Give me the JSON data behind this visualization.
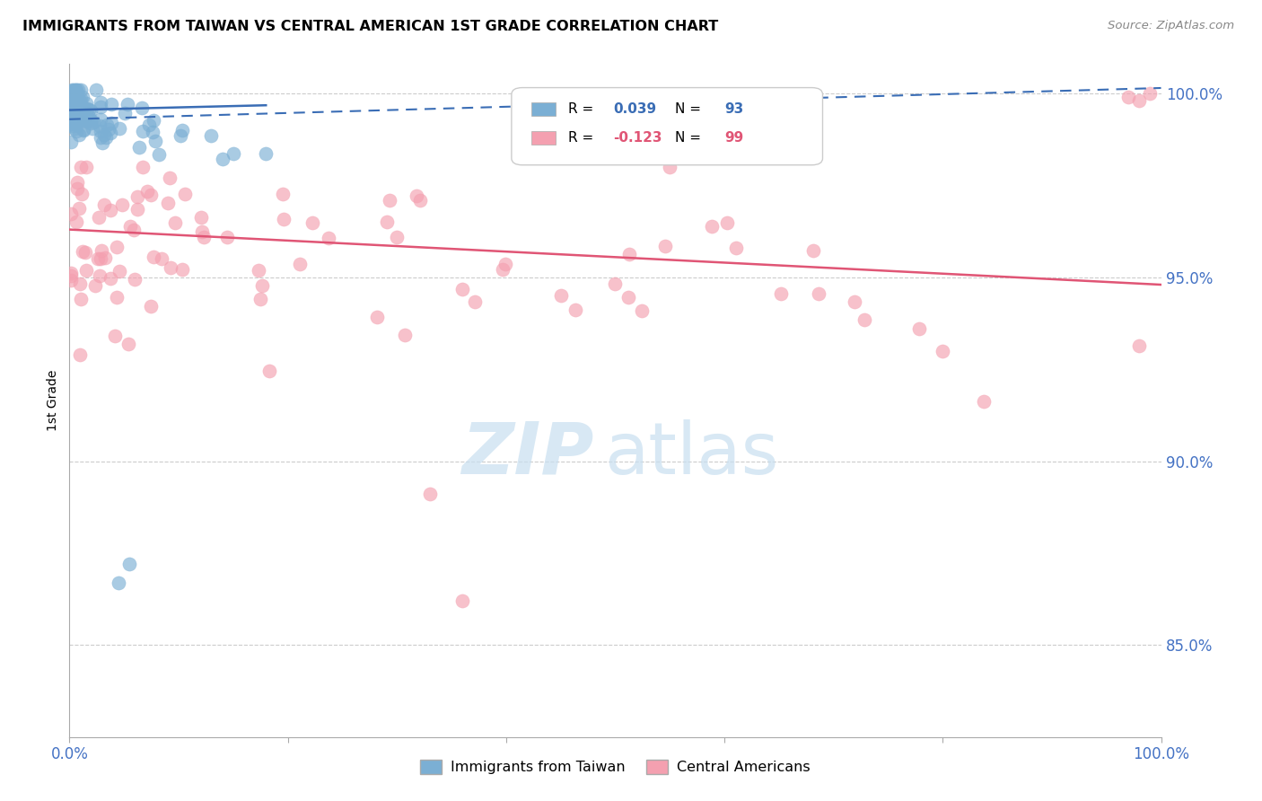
{
  "title": "IMMIGRANTS FROM TAIWAN VS CENTRAL AMERICAN 1ST GRADE CORRELATION CHART",
  "source": "Source: ZipAtlas.com",
  "ylabel": "1st Grade",
  "xlim": [
    0.0,
    1.0
  ],
  "ylim": [
    0.825,
    1.008
  ],
  "yticks": [
    0.85,
    0.9,
    0.95,
    1.0
  ],
  "ytick_labels": [
    "85.0%",
    "90.0%",
    "95.0%",
    "100.0%"
  ],
  "taiwan_color": "#7bafd4",
  "central_color": "#f4a0b0",
  "taiwan_line_color": "#3a6db5",
  "central_line_color": "#e05575",
  "legend_color_blue": "#3a6db5",
  "legend_color_pink": "#e05575",
  "taiwan_R": "0.039",
  "taiwan_N": "93",
  "central_R": "-0.123",
  "central_N": "99",
  "taiwan_trend_x": [
    0.0,
    0.18
  ],
  "taiwan_trend_y": [
    0.9955,
    0.9968
  ],
  "central_trend_x": [
    0.0,
    1.0
  ],
  "central_trend_y": [
    0.963,
    0.948
  ],
  "dashed_trend_x": [
    0.0,
    1.0
  ],
  "dashed_trend_y": [
    0.993,
    1.0015
  ],
  "grid_color": "#cccccc",
  "spine_color": "#aaaaaa",
  "watermark_color": "#c8dff0",
  "right_tick_color": "#4472c4",
  "x_tick_color": "#4472c4"
}
